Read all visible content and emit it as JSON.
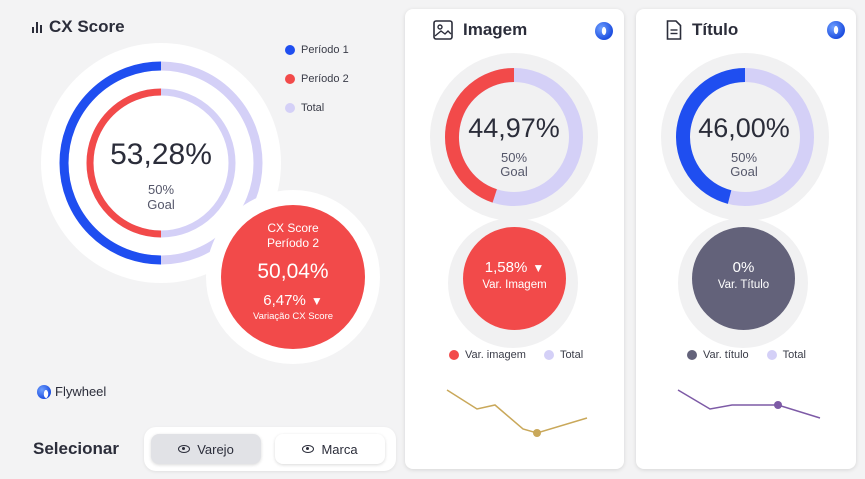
{
  "header": {
    "title": "CX Score"
  },
  "legend": {
    "items": [
      {
        "label": "Período 1",
        "color": "#1f4ef0"
      },
      {
        "label": "Período 2",
        "color": "#f24a4a"
      },
      {
        "label": "Total",
        "color": "#d4d0f7"
      }
    ]
  },
  "main_donut": {
    "value_label": "53,28%",
    "goal_pct": "50%",
    "goal_label": "Goal",
    "periodo1_fraction": 0.5,
    "periodo2_fraction": 0.5
  },
  "periodo2_bubble": {
    "title_line1": "CX Score",
    "title_line2": "Período 2",
    "value": "50,04%",
    "variation": "6,47%",
    "variation_label": "Variação CX Score"
  },
  "brand": {
    "name": "Flywheel"
  },
  "selector": {
    "label": "Selecionar",
    "options": [
      {
        "label": "Varejo",
        "selected": true
      },
      {
        "label": "Marca",
        "selected": false
      }
    ]
  },
  "cards": [
    {
      "title": "Imagem",
      "icon": "image-icon",
      "value_label": "44,97%",
      "value_fraction": 0.4497,
      "ring_color": "#f24a4a",
      "goal_pct": "50%",
      "goal_label": "Goal",
      "var_value": "1,58%",
      "var_label": "Var. Imagem",
      "var_color": "#f24a4a",
      "legend_var": "Var. imagem",
      "legend_total": "Total",
      "sparkline_color": "#c9a85a"
    },
    {
      "title": "Título",
      "icon": "document-icon",
      "value_label": "46,00%",
      "value_fraction": 0.46,
      "ring_color": "#1f4ef0",
      "goal_pct": "50%",
      "goal_label": "Goal",
      "var_value": "0%",
      "var_label": "Var. Título",
      "var_color": "#63627a",
      "legend_var": "Var. título",
      "legend_total": "Total",
      "sparkline_color": "#7d5aa6"
    }
  ],
  "colors": {
    "track": "#d4d0f7",
    "red": "#f24a4a",
    "blue": "#1f4ef0",
    "gray_var": "#63627a"
  }
}
